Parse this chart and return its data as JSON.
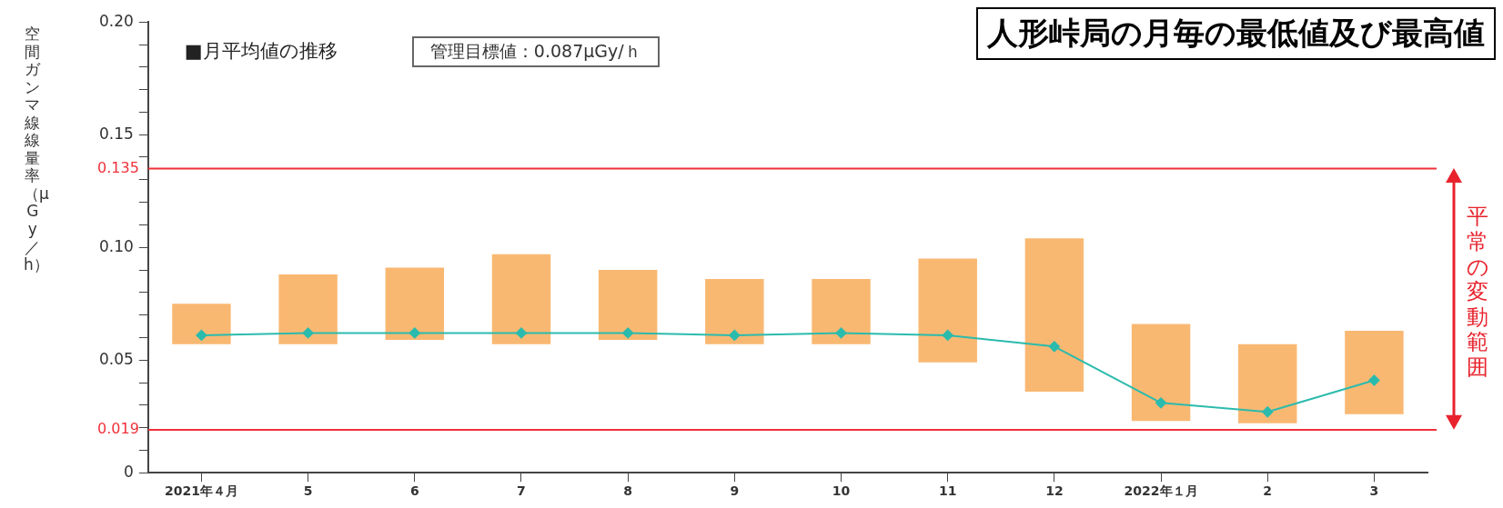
{
  "chart_data": {
    "type": "bar",
    "title": "人形峠局の月毎の最低値及び最高値",
    "ylabel": "空間ガンマ線線量率（μGy／h）",
    "categories": [
      "2021年４月",
      "5",
      "6",
      "7",
      "8",
      "9",
      "10",
      "11",
      "12",
      "2022年１月",
      "2",
      "3"
    ],
    "series": [
      {
        "color": "#f9b872",
        "base": [
          0.057,
          0.057,
          0.059,
          0.057,
          0.059,
          0.057,
          0.057,
          0.049,
          0.036,
          0.023,
          0.022,
          0.026
        ],
        "values": [
          0.018,
          0.031,
          0.032,
          0.04,
          0.031,
          0.029,
          0.029,
          0.046,
          0.068,
          0.043,
          0.035,
          0.037
        ]
      },
      {
        "type": "line",
        "color": "#2bbbad",
        "marker": "diamond",
        "values": [
          0.061,
          0.062,
          0.062,
          0.062,
          0.062,
          0.061,
          0.062,
          0.061,
          0.056,
          0.031,
          0.027,
          0.041
        ]
      }
    ],
    "ylim": [
      0,
      0.2
    ],
    "yticks": [
      0,
      {
        "value": 0.01,
        "label": null
      },
      {
        "value": 0.02,
        "label": null
      },
      {
        "value": 0.03,
        "label": null
      },
      {
        "value": 0.04,
        "label": null
      },
      0.05,
      {
        "value": 0.06,
        "label": null
      },
      {
        "value": 0.07,
        "label": null
      },
      {
        "value": 0.08,
        "label": null
      },
      {
        "value": 0.09,
        "label": null
      },
      {
        "value": 0.1,
        "label": "0.10"
      },
      {
        "value": 0.11,
        "label": null
      },
      {
        "value": 0.12,
        "label": null
      },
      {
        "value": 0.13,
        "label": null
      },
      {
        "value": 0.14,
        "label": null
      },
      0.15,
      {
        "value": 0.16,
        "label": null
      },
      {
        "value": 0.17,
        "label": null
      },
      {
        "value": 0.18,
        "label": null
      },
      {
        "value": 0.19,
        "label": null
      },
      {
        "value": 0.2,
        "label": "0.20"
      }
    ],
    "ref_lines": [
      {
        "axis": "y",
        "value": 0.135,
        "label": "0.135",
        "color": "#f0303a"
      },
      {
        "axis": "y",
        "value": 0.019,
        "label": "0.019",
        "color": "#f0303a"
      }
    ],
    "annotations": [
      "■月平均値の推移",
      "管理目標値：0.087μGy/ｈ",
      "平常の変動範囲"
    ],
    "grid": false,
    "legend": false
  }
}
